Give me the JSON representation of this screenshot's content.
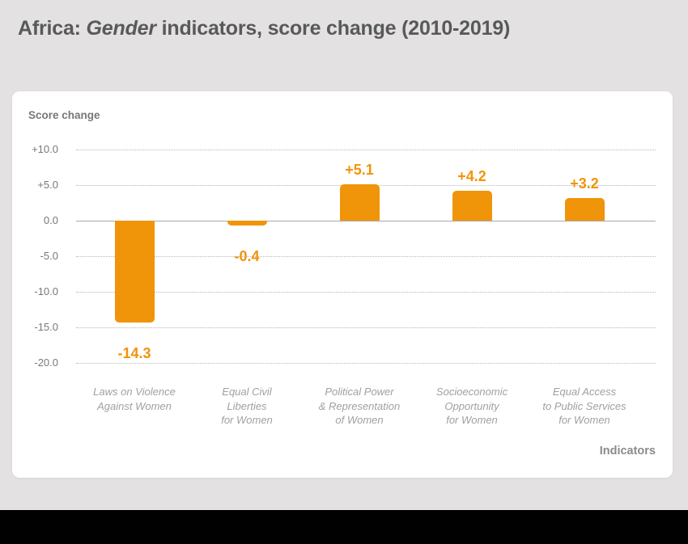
{
  "title": {
    "prefix": "Africa: ",
    "italic": "Gender",
    "suffix": " indicators, score change (2010-2019)"
  },
  "chart_data": {
    "type": "bar",
    "title": "Africa: Gender indicators, score change (2010-2019)",
    "ylabel": "Score change",
    "xlabel": "Indicators",
    "ylim": [
      -20,
      10
    ],
    "grid": "horizontal dotted gridlines every 5 units, solid line at 0",
    "legend": "none",
    "bar_color": "#F0940A",
    "yticks": [
      {
        "label": "+10.0",
        "value": 10
      },
      {
        "label": "+5.0",
        "value": 5
      },
      {
        "label": "0.0",
        "value": 0
      },
      {
        "label": "-5.0",
        "value": -5
      },
      {
        "label": "-10.0",
        "value": -10
      },
      {
        "label": "-15.0",
        "value": -15
      },
      {
        "label": "-20.0",
        "value": -20
      }
    ],
    "categories": [
      "Laws on Violence Against Women",
      "Equal Civil Liberties for Women",
      "Political Power & Representation of Women",
      "Socioeconomic Opportunity for Women",
      "Equal Access to Public Services for Women"
    ],
    "values": [
      -14.3,
      -0.4,
      5.1,
      4.2,
      3.2
    ],
    "bars": [
      {
        "category_lines": [
          "Laws on Violence",
          "Against Women"
        ],
        "value": -14.3,
        "label": "-14.3"
      },
      {
        "category_lines": [
          "Equal Civil",
          "Liberties",
          "for Women"
        ],
        "value": -0.4,
        "label": "-0.4"
      },
      {
        "category_lines": [
          "Political Power",
          "& Representation",
          "of Women"
        ],
        "value": 5.1,
        "label": "+5.1"
      },
      {
        "category_lines": [
          "Socioeconomic",
          "Opportunity",
          "for Women"
        ],
        "value": 4.2,
        "label": "+4.2"
      },
      {
        "category_lines": [
          "Equal Access",
          "to Public Services",
          "for Women"
        ],
        "value": 3.2,
        "label": "+3.2"
      }
    ]
  },
  "colors": {
    "background": "#e3e1e2",
    "card": "#ffffff",
    "accent_orange": "#F0940A",
    "title_text": "#58595b",
    "axis_text": "#77787b",
    "category_text": "#9fa0a3",
    "zero_line": "#a9a9ab",
    "gridline": "#b6b6b8",
    "footer": "#010101"
  }
}
